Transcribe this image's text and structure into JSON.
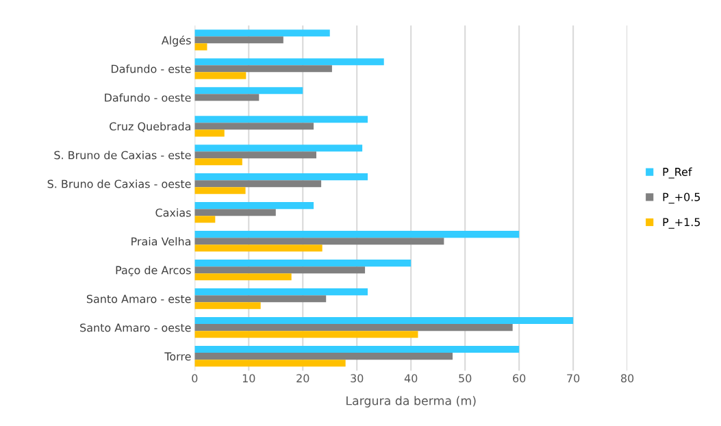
{
  "chart_data": {
    "type": "bar",
    "orientation": "horizontal",
    "xlabel": "Largura da berma (m)",
    "categories": [
      "Algés",
      "Dafundo - este",
      "Dafundo - oeste",
      "Cruz Quebrada",
      "S. Bruno de Caxias - este",
      "S. Bruno de Caxias - oeste",
      "Caxias",
      "Praia Velha",
      "Paço de Arcos",
      "Santo Amaro - este",
      "Santo Amaro - oeste",
      "Torre"
    ],
    "series": [
      {
        "name": "P_Ref",
        "color": "#33ccff",
        "values": [
          25,
          35,
          20,
          32,
          31,
          32,
          22,
          60,
          40,
          32,
          70,
          60
        ]
      },
      {
        "name": "P_+0.5",
        "color": "#808080",
        "values": [
          16.4,
          25.4,
          11.9,
          22,
          22.5,
          23.4,
          15,
          46.1,
          31.5,
          24.3,
          58.8,
          47.7
        ]
      },
      {
        "name": "P_+1.5",
        "color": "#ffc000",
        "values": [
          2.3,
          9.5,
          null,
          5.5,
          8.8,
          9.4,
          3.8,
          23.6,
          17.9,
          12.2,
          41.3,
          27.9
        ]
      }
    ],
    "xlim": [
      0,
      80
    ],
    "xticks": [
      0,
      10,
      20,
      30,
      40,
      50,
      60,
      70,
      80
    ],
    "grid": "x",
    "legend": "right"
  }
}
